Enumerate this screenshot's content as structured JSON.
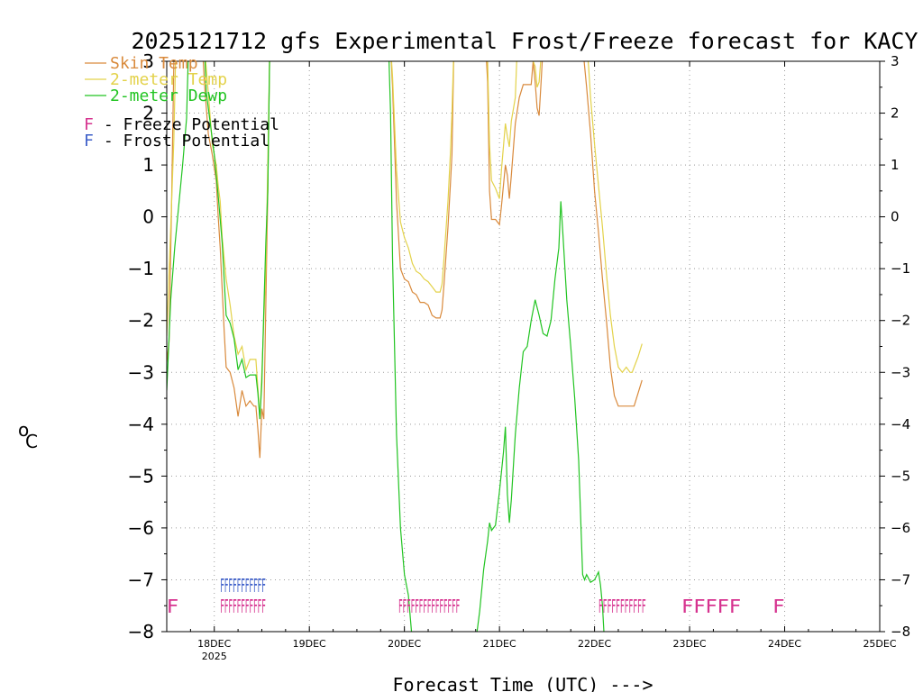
{
  "chart_data": {
    "type": "line",
    "title": "2025121712 gfs Experimental Frost/Freeze forecast for KACY",
    "xlabel": "Forecast Time (UTC) --->",
    "ylabel": "°C",
    "ylabel_unit": "C",
    "ylabel_degree": "o",
    "ylim": [
      -8,
      3
    ],
    "xlim_hours": [
      0,
      180
    ],
    "grid": true,
    "y_ticks": [
      -8,
      -7,
      -6,
      -5,
      -4,
      -3,
      -2,
      -1,
      0,
      1,
      2,
      3
    ],
    "y_tick_labels": [
      "−8",
      "−7",
      "−6",
      "−5",
      "−4",
      "−3",
      "−2",
      "−1",
      "0",
      "1",
      "2",
      "3"
    ],
    "x_ticks": [
      {
        "hour": 12,
        "label": "18DEC",
        "sublabel": "2025"
      },
      {
        "hour": 36,
        "label": "19DEC",
        "sublabel": ""
      },
      {
        "hour": 60,
        "label": "20DEC",
        "sublabel": ""
      },
      {
        "hour": 84,
        "label": "21DEC",
        "sublabel": ""
      },
      {
        "hour": 108,
        "label": "22DEC",
        "sublabel": ""
      },
      {
        "hour": 132,
        "label": "23DEC",
        "sublabel": ""
      },
      {
        "hour": 156,
        "label": "24DEC",
        "sublabel": ""
      },
      {
        "hour": 180,
        "label": "25DEC",
        "sublabel": ""
      }
    ],
    "legend": [
      {
        "name": "Skin Temp",
        "color": "#d98a3c"
      },
      {
        "name": "2-meter Temp",
        "color": "#e3d24a"
      },
      {
        "name": "2-meter Dewp",
        "color": "#22c422"
      }
    ],
    "markers_legend": [
      {
        "letter": "F",
        "text": " - Freeze Potential",
        "color": "#d6338f"
      },
      {
        "letter": "F",
        "text": " - Frost Potential",
        "color": "#3e5fc9"
      }
    ],
    "series": [
      {
        "name": "Skin Temp",
        "color": "#d98a3c",
        "points": [
          [
            0,
            -2.8
          ],
          [
            0.6,
            -2.4
          ],
          [
            1.2,
            0.2
          ],
          [
            1.8,
            3.0
          ],
          [
            2.2,
            3.3
          ],
          [
            9,
            3.3
          ],
          [
            9.5,
            2.6
          ],
          [
            10.5,
            1.6
          ],
          [
            11.5,
            1.2
          ],
          [
            12.5,
            0.7
          ],
          [
            13,
            0.0
          ],
          [
            13.5,
            -0.6
          ],
          [
            14,
            -1.4
          ],
          [
            14.5,
            -2.2
          ],
          [
            15,
            -2.9
          ],
          [
            16,
            -3.0
          ],
          [
            17,
            -3.3
          ],
          [
            18,
            -3.85
          ],
          [
            19,
            -3.35
          ],
          [
            20,
            -3.65
          ],
          [
            21,
            -3.55
          ],
          [
            22,
            -3.65
          ],
          [
            22.5,
            -3.65
          ],
          [
            23,
            -4.1
          ],
          [
            23.5,
            -4.65
          ],
          [
            24,
            -3.7
          ],
          [
            24.5,
            -3.9
          ],
          [
            25,
            -1.7
          ],
          [
            25.5,
            0.5
          ],
          [
            26,
            3.3
          ],
          [
            56.5,
            3.3
          ],
          [
            57,
            2.5
          ],
          [
            58,
            0.3
          ],
          [
            59,
            -1.0
          ],
          [
            60,
            -1.2
          ],
          [
            61,
            -1.25
          ],
          [
            62,
            -1.45
          ],
          [
            63,
            -1.5
          ],
          [
            64,
            -1.65
          ],
          [
            65,
            -1.65
          ],
          [
            66,
            -1.7
          ],
          [
            67,
            -1.9
          ],
          [
            68,
            -1.95
          ],
          [
            69,
            -1.95
          ],
          [
            69.5,
            -1.8
          ],
          [
            70,
            -1.3
          ],
          [
            71,
            -0.2
          ],
          [
            71.6,
            0.6
          ],
          [
            72,
            1.2
          ],
          [
            72.5,
            3.3
          ],
          [
            80.5,
            3.3
          ],
          [
            81,
            2.6
          ],
          [
            81.5,
            0.5
          ],
          [
            82,
            -0.05
          ],
          [
            83,
            -0.05
          ],
          [
            84,
            -0.15
          ],
          [
            84.5,
            0.2
          ],
          [
            85.5,
            1.0
          ],
          [
            86,
            0.8
          ],
          [
            86.5,
            0.35
          ],
          [
            87,
            0.8
          ],
          [
            88,
            1.8
          ],
          [
            89,
            2.3
          ],
          [
            90,
            2.55
          ],
          [
            91,
            2.55
          ],
          [
            92,
            2.55
          ],
          [
            92.5,
            3.0
          ],
          [
            93,
            2.6
          ],
          [
            93.5,
            2.1
          ],
          [
            94,
            1.95
          ],
          [
            94.5,
            2.6
          ],
          [
            95,
            3.3
          ],
          [
            105,
            3.3
          ],
          [
            106,
            2.5
          ],
          [
            107,
            1.6
          ],
          [
            108,
            0.5
          ],
          [
            109,
            -0.3
          ],
          [
            110,
            -1.2
          ],
          [
            111,
            -2.0
          ],
          [
            112,
            -2.9
          ],
          [
            113,
            -3.45
          ],
          [
            114,
            -3.65
          ],
          [
            115,
            -3.65
          ],
          [
            116,
            -3.65
          ],
          [
            117,
            -3.65
          ],
          [
            118,
            -3.65
          ],
          [
            119,
            -3.4
          ],
          [
            120,
            -3.15
          ]
        ]
      },
      {
        "name": "2-meter Temp",
        "color": "#e3d24a",
        "points": [
          [
            0,
            -2.3
          ],
          [
            1,
            -0.2
          ],
          [
            1.8,
            1.5
          ],
          [
            2.3,
            3.3
          ],
          [
            9.5,
            3.3
          ],
          [
            10.5,
            2.4
          ],
          [
            11.5,
            1.4
          ],
          [
            12.5,
            1.0
          ],
          [
            13,
            0.6
          ],
          [
            13.5,
            0.3
          ],
          [
            14,
            -0.4
          ],
          [
            15,
            -1.2
          ],
          [
            16,
            -1.7
          ],
          [
            17,
            -2.3
          ],
          [
            18,
            -2.65
          ],
          [
            19,
            -2.5
          ],
          [
            20,
            -2.95
          ],
          [
            21,
            -2.75
          ],
          [
            22,
            -2.75
          ],
          [
            22.5,
            -2.75
          ],
          [
            23,
            -3.3
          ],
          [
            23.5,
            -3.9
          ],
          [
            24,
            -3.0
          ],
          [
            25,
            -1.0
          ],
          [
            25.5,
            1.0
          ],
          [
            26,
            3.3
          ],
          [
            56.5,
            3.3
          ],
          [
            57,
            2.7
          ],
          [
            58,
            0.9
          ],
          [
            59,
            -0.1
          ],
          [
            60,
            -0.4
          ],
          [
            61,
            -0.6
          ],
          [
            62,
            -0.9
          ],
          [
            63,
            -1.05
          ],
          [
            64,
            -1.1
          ],
          [
            65,
            -1.2
          ],
          [
            66,
            -1.25
          ],
          [
            67,
            -1.35
          ],
          [
            68,
            -1.45
          ],
          [
            69,
            -1.45
          ],
          [
            69.5,
            -1.3
          ],
          [
            70,
            -0.8
          ],
          [
            71,
            0.3
          ],
          [
            71.6,
            1.2
          ],
          [
            72,
            2.0
          ],
          [
            72.5,
            3.3
          ],
          [
            80.5,
            3.3
          ],
          [
            81,
            3.0
          ],
          [
            81.5,
            1.4
          ],
          [
            82,
            0.7
          ],
          [
            83,
            0.55
          ],
          [
            84,
            0.35
          ],
          [
            84.5,
            0.9
          ],
          [
            85.5,
            1.8
          ],
          [
            86,
            1.55
          ],
          [
            86.5,
            1.35
          ],
          [
            87,
            1.85
          ],
          [
            88,
            2.3
          ],
          [
            88.5,
            3.3
          ],
          [
            92,
            3.3
          ],
          [
            92.5,
            3.0
          ],
          [
            93,
            2.9
          ],
          [
            93.5,
            2.5
          ],
          [
            94,
            2.6
          ],
          [
            94.5,
            3.1
          ],
          [
            95,
            3.3
          ],
          [
            106,
            3.3
          ],
          [
            106.5,
            2.9
          ],
          [
            107,
            2.3
          ],
          [
            108,
            1.4
          ],
          [
            109,
            0.6
          ],
          [
            110,
            -0.2
          ],
          [
            111,
            -1.1
          ],
          [
            112,
            -1.9
          ],
          [
            113,
            -2.5
          ],
          [
            114,
            -2.9
          ],
          [
            115,
            -3.0
          ],
          [
            116,
            -2.9
          ],
          [
            117,
            -3.0
          ],
          [
            117.5,
            -3.0
          ],
          [
            118,
            -2.9
          ],
          [
            119,
            -2.7
          ],
          [
            120,
            -2.45
          ]
        ]
      },
      {
        "name": "2-meter Dewp",
        "color": "#22c422",
        "points": [
          [
            0,
            -3.35
          ],
          [
            1,
            -1.6
          ],
          [
            2,
            -0.6
          ],
          [
            3,
            0.2
          ],
          [
            4,
            1.0
          ],
          [
            5,
            1.9
          ],
          [
            5.5,
            3.3
          ],
          [
            9.5,
            3.3
          ],
          [
            10,
            2.4
          ],
          [
            11,
            1.8
          ],
          [
            11.5,
            1.5
          ],
          [
            12,
            1.2
          ],
          [
            12.5,
            0.8
          ],
          [
            13,
            0.4
          ],
          [
            14,
            -0.5
          ],
          [
            15,
            -1.9
          ],
          [
            16,
            -2.05
          ],
          [
            17,
            -2.35
          ],
          [
            18,
            -2.95
          ],
          [
            19,
            -2.75
          ],
          [
            20,
            -3.1
          ],
          [
            21,
            -3.05
          ],
          [
            22,
            -3.05
          ],
          [
            22.5,
            -3.05
          ],
          [
            23,
            -3.4
          ],
          [
            23.5,
            -3.9
          ],
          [
            24,
            -3.2
          ],
          [
            24.5,
            -1.8
          ],
          [
            25,
            -0.5
          ],
          [
            25.5,
            0.5
          ],
          [
            26,
            3.3
          ],
          [
            56,
            3.3
          ],
          [
            56.5,
            2.0
          ],
          [
            57,
            -0.8
          ],
          [
            58,
            -4.2
          ],
          [
            59,
            -6.0
          ],
          [
            60,
            -6.9
          ],
          [
            61,
            -7.3
          ],
          [
            62,
            -8.2
          ],
          [
            78,
            -8.2
          ],
          [
            79,
            -7.6
          ],
          [
            80,
            -6.8
          ],
          [
            81,
            -6.25
          ],
          [
            81.5,
            -5.9
          ],
          [
            82,
            -6.05
          ],
          [
            83,
            -5.95
          ],
          [
            84,
            -5.3
          ],
          [
            85,
            -4.55
          ],
          [
            85.5,
            -4.05
          ],
          [
            86,
            -5.35
          ],
          [
            86.5,
            -5.9
          ],
          [
            87,
            -5.45
          ],
          [
            88,
            -4.2
          ],
          [
            89,
            -3.3
          ],
          [
            90,
            -2.6
          ],
          [
            91,
            -2.5
          ],
          [
            92,
            -2.0
          ],
          [
            93,
            -1.6
          ],
          [
            94,
            -1.9
          ],
          [
            95,
            -2.25
          ],
          [
            96,
            -2.3
          ],
          [
            97,
            -2.0
          ],
          [
            98,
            -1.2
          ],
          [
            99,
            -0.6
          ],
          [
            99.5,
            0.3
          ],
          [
            100,
            -0.3
          ],
          [
            101,
            -1.6
          ],
          [
            102,
            -2.5
          ],
          [
            103,
            -3.5
          ],
          [
            104,
            -4.7
          ],
          [
            105,
            -6.9
          ],
          [
            105.5,
            -7.0
          ],
          [
            106,
            -6.9
          ],
          [
            107,
            -7.05
          ],
          [
            108,
            -7.0
          ],
          [
            109,
            -6.85
          ],
          [
            109.5,
            -7.1
          ],
          [
            110,
            -7.5
          ],
          [
            110.5,
            -8.2
          ]
        ]
      }
    ],
    "frost_marks": [
      {
        "text": "FFFFFFFFFFF",
        "start_hour": 13.5,
        "end_hour": 25,
        "color": "#3e5fc9"
      }
    ],
    "freeze_marks": [
      {
        "text": "F",
        "start_hour": 0,
        "end_hour": 3,
        "color": "#d6338f"
      },
      {
        "text": "FFFFFFFFFFF",
        "start_hour": 13.5,
        "end_hour": 25,
        "color": "#d6338f"
      },
      {
        "text": "FFFFFFFFFFFFFFF",
        "start_hour": 58.5,
        "end_hour": 74,
        "color": "#d6338f"
      },
      {
        "text": "FFFFFFFFFFF",
        "start_hour": 109,
        "end_hour": 121,
        "color": "#d6338f"
      },
      {
        "text": "FFFFF",
        "start_hour": 130,
        "end_hour": 145,
        "color": "#d6338f"
      },
      {
        "text": "F",
        "start_hour": 153,
        "end_hour": 156,
        "color": "#d6338f"
      }
    ]
  }
}
